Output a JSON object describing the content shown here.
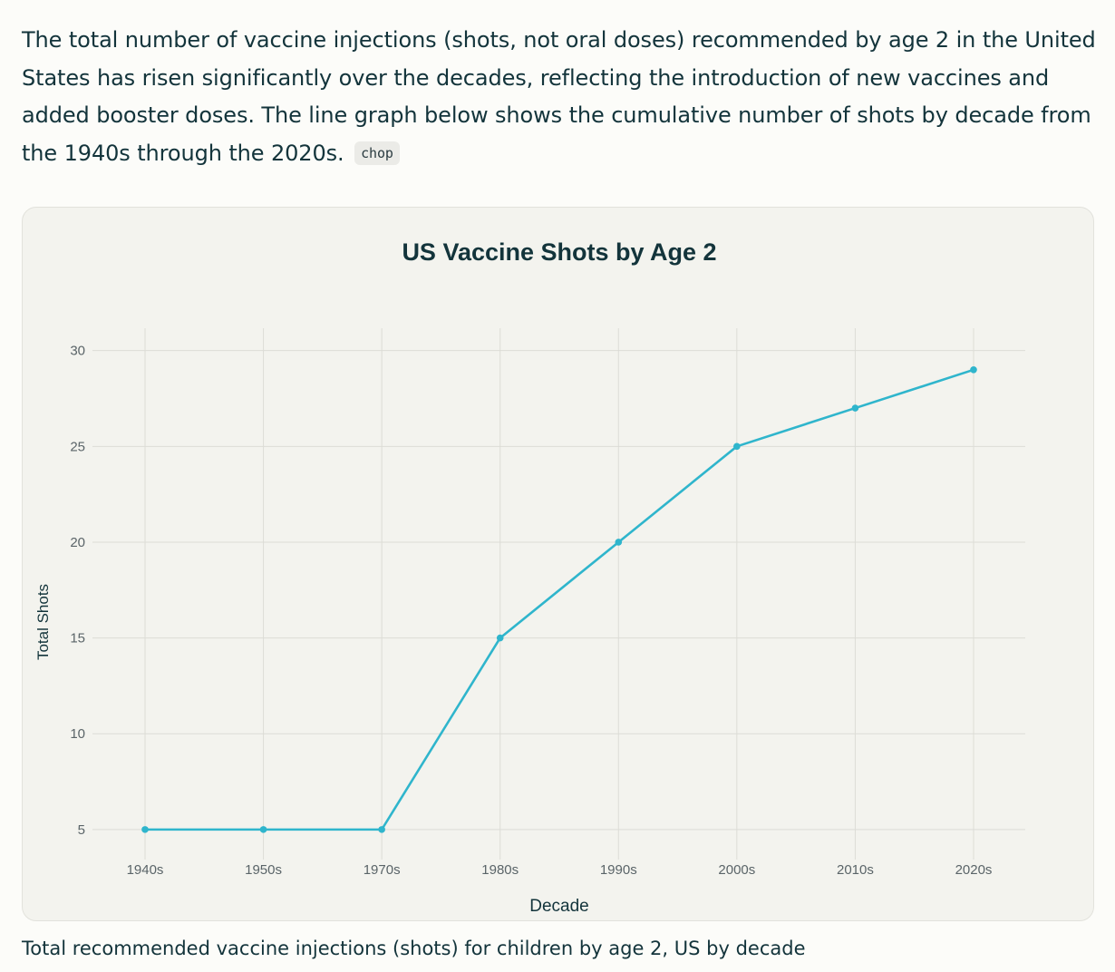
{
  "intro": {
    "text": "The total number of vaccine injections (shots, not oral doses) recommended by age 2 in the United States has risen significantly over the decades, reflecting the introduction of new vaccines and added booster doses. The line graph below shows the cumulative number of shots by decade from the 1940s through the 2020s.",
    "citation": "chop"
  },
  "caption": "Total recommended vaccine injections (shots) for children by age 2, US by decade",
  "colors": {
    "line": "#2fb5cc",
    "grid": "#dcdcd6",
    "text": "#13343b",
    "tick": "#5a6468"
  },
  "chart_data": {
    "type": "line",
    "title": "US Vaccine Shots by Age 2",
    "xlabel": "Decade",
    "ylabel": "Total Shots",
    "categories": [
      "1940s",
      "1950s",
      "1970s",
      "1980s",
      "1990s",
      "2000s",
      "2010s",
      "2020s"
    ],
    "values": [
      5,
      5,
      5,
      15,
      20,
      25,
      27,
      29
    ],
    "y_ticks": [
      5,
      10,
      15,
      20,
      25,
      30
    ],
    "ylim": [
      4,
      30.6
    ],
    "grid": true,
    "markers": true
  }
}
